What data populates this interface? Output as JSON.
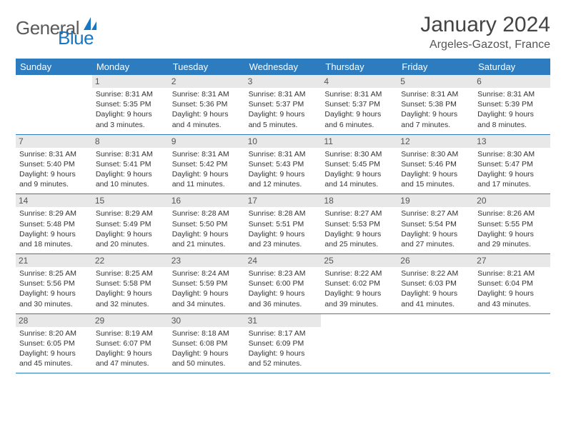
{
  "logo": {
    "part1": "General",
    "part2": "Blue"
  },
  "title": "January 2024",
  "location": "Argeles-Gazost, France",
  "header_bg": "#2c7cbf",
  "daynum_bg": "#e8e8e8",
  "day_names": [
    "Sunday",
    "Monday",
    "Tuesday",
    "Wednesday",
    "Thursday",
    "Friday",
    "Saturday"
  ],
  "weeks": [
    [
      {
        "n": "",
        "sr": "",
        "ss": "",
        "dl": ""
      },
      {
        "n": "1",
        "sr": "Sunrise: 8:31 AM",
        "ss": "Sunset: 5:35 PM",
        "dl": "Daylight: 9 hours and 3 minutes."
      },
      {
        "n": "2",
        "sr": "Sunrise: 8:31 AM",
        "ss": "Sunset: 5:36 PM",
        "dl": "Daylight: 9 hours and 4 minutes."
      },
      {
        "n": "3",
        "sr": "Sunrise: 8:31 AM",
        "ss": "Sunset: 5:37 PM",
        "dl": "Daylight: 9 hours and 5 minutes."
      },
      {
        "n": "4",
        "sr": "Sunrise: 8:31 AM",
        "ss": "Sunset: 5:37 PM",
        "dl": "Daylight: 9 hours and 6 minutes."
      },
      {
        "n": "5",
        "sr": "Sunrise: 8:31 AM",
        "ss": "Sunset: 5:38 PM",
        "dl": "Daylight: 9 hours and 7 minutes."
      },
      {
        "n": "6",
        "sr": "Sunrise: 8:31 AM",
        "ss": "Sunset: 5:39 PM",
        "dl": "Daylight: 9 hours and 8 minutes."
      }
    ],
    [
      {
        "n": "7",
        "sr": "Sunrise: 8:31 AM",
        "ss": "Sunset: 5:40 PM",
        "dl": "Daylight: 9 hours and 9 minutes."
      },
      {
        "n": "8",
        "sr": "Sunrise: 8:31 AM",
        "ss": "Sunset: 5:41 PM",
        "dl": "Daylight: 9 hours and 10 minutes."
      },
      {
        "n": "9",
        "sr": "Sunrise: 8:31 AM",
        "ss": "Sunset: 5:42 PM",
        "dl": "Daylight: 9 hours and 11 minutes."
      },
      {
        "n": "10",
        "sr": "Sunrise: 8:31 AM",
        "ss": "Sunset: 5:43 PM",
        "dl": "Daylight: 9 hours and 12 minutes."
      },
      {
        "n": "11",
        "sr": "Sunrise: 8:30 AM",
        "ss": "Sunset: 5:45 PM",
        "dl": "Daylight: 9 hours and 14 minutes."
      },
      {
        "n": "12",
        "sr": "Sunrise: 8:30 AM",
        "ss": "Sunset: 5:46 PM",
        "dl": "Daylight: 9 hours and 15 minutes."
      },
      {
        "n": "13",
        "sr": "Sunrise: 8:30 AM",
        "ss": "Sunset: 5:47 PM",
        "dl": "Daylight: 9 hours and 17 minutes."
      }
    ],
    [
      {
        "n": "14",
        "sr": "Sunrise: 8:29 AM",
        "ss": "Sunset: 5:48 PM",
        "dl": "Daylight: 9 hours and 18 minutes."
      },
      {
        "n": "15",
        "sr": "Sunrise: 8:29 AM",
        "ss": "Sunset: 5:49 PM",
        "dl": "Daylight: 9 hours and 20 minutes."
      },
      {
        "n": "16",
        "sr": "Sunrise: 8:28 AM",
        "ss": "Sunset: 5:50 PM",
        "dl": "Daylight: 9 hours and 21 minutes."
      },
      {
        "n": "17",
        "sr": "Sunrise: 8:28 AM",
        "ss": "Sunset: 5:51 PM",
        "dl": "Daylight: 9 hours and 23 minutes."
      },
      {
        "n": "18",
        "sr": "Sunrise: 8:27 AM",
        "ss": "Sunset: 5:53 PM",
        "dl": "Daylight: 9 hours and 25 minutes."
      },
      {
        "n": "19",
        "sr": "Sunrise: 8:27 AM",
        "ss": "Sunset: 5:54 PM",
        "dl": "Daylight: 9 hours and 27 minutes."
      },
      {
        "n": "20",
        "sr": "Sunrise: 8:26 AM",
        "ss": "Sunset: 5:55 PM",
        "dl": "Daylight: 9 hours and 29 minutes."
      }
    ],
    [
      {
        "n": "21",
        "sr": "Sunrise: 8:25 AM",
        "ss": "Sunset: 5:56 PM",
        "dl": "Daylight: 9 hours and 30 minutes."
      },
      {
        "n": "22",
        "sr": "Sunrise: 8:25 AM",
        "ss": "Sunset: 5:58 PM",
        "dl": "Daylight: 9 hours and 32 minutes."
      },
      {
        "n": "23",
        "sr": "Sunrise: 8:24 AM",
        "ss": "Sunset: 5:59 PM",
        "dl": "Daylight: 9 hours and 34 minutes."
      },
      {
        "n": "24",
        "sr": "Sunrise: 8:23 AM",
        "ss": "Sunset: 6:00 PM",
        "dl": "Daylight: 9 hours and 36 minutes."
      },
      {
        "n": "25",
        "sr": "Sunrise: 8:22 AM",
        "ss": "Sunset: 6:02 PM",
        "dl": "Daylight: 9 hours and 39 minutes."
      },
      {
        "n": "26",
        "sr": "Sunrise: 8:22 AM",
        "ss": "Sunset: 6:03 PM",
        "dl": "Daylight: 9 hours and 41 minutes."
      },
      {
        "n": "27",
        "sr": "Sunrise: 8:21 AM",
        "ss": "Sunset: 6:04 PM",
        "dl": "Daylight: 9 hours and 43 minutes."
      }
    ],
    [
      {
        "n": "28",
        "sr": "Sunrise: 8:20 AM",
        "ss": "Sunset: 6:05 PM",
        "dl": "Daylight: 9 hours and 45 minutes."
      },
      {
        "n": "29",
        "sr": "Sunrise: 8:19 AM",
        "ss": "Sunset: 6:07 PM",
        "dl": "Daylight: 9 hours and 47 minutes."
      },
      {
        "n": "30",
        "sr": "Sunrise: 8:18 AM",
        "ss": "Sunset: 6:08 PM",
        "dl": "Daylight: 9 hours and 50 minutes."
      },
      {
        "n": "31",
        "sr": "Sunrise: 8:17 AM",
        "ss": "Sunset: 6:09 PM",
        "dl": "Daylight: 9 hours and 52 minutes."
      },
      {
        "n": "",
        "sr": "",
        "ss": "",
        "dl": ""
      },
      {
        "n": "",
        "sr": "",
        "ss": "",
        "dl": ""
      },
      {
        "n": "",
        "sr": "",
        "ss": "",
        "dl": ""
      }
    ]
  ]
}
